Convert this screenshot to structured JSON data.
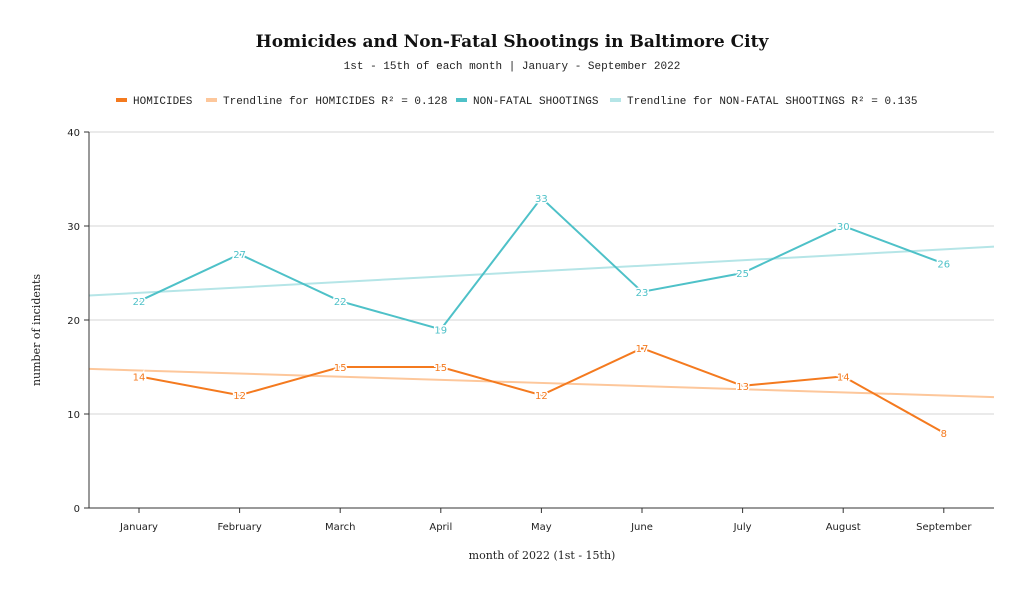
{
  "chart_data": {
    "type": "line",
    "title": "Homicides and Non-Fatal Shootings in Baltimore City",
    "subtitle": "1st - 15th of each month | January - September 2022",
    "xlabel": "month of 2022 (1st - 15th)",
    "ylabel": "number of incidents",
    "ylim": [
      0,
      40
    ],
    "yticks": [
      "0",
      "10",
      "20",
      "30",
      "40"
    ],
    "categories": [
      "January",
      "February",
      "March",
      "April",
      "May",
      "June",
      "July",
      "August",
      "September"
    ],
    "legend_position": "top",
    "series": [
      {
        "name": "HOMICIDES",
        "color": "#f47a1f",
        "values": [
          14,
          12,
          15,
          15,
          12,
          17,
          13,
          14,
          8
        ]
      },
      {
        "name": "NON-FATAL SHOOTINGS",
        "color": "#4ec1c8",
        "values": [
          22,
          27,
          22,
          19,
          33,
          23,
          25,
          30,
          26
        ]
      }
    ],
    "trendlines": [
      {
        "name": "Trendline for HOMICIDES R² = 0.128",
        "color": "#fdc79b",
        "start": 14.8,
        "end": 11.8
      },
      {
        "name": "Trendline for NON-FATAL SHOOTINGS R² = 0.135",
        "color": "#b5e5e7",
        "start": 22.6,
        "end": 27.8
      }
    ]
  }
}
